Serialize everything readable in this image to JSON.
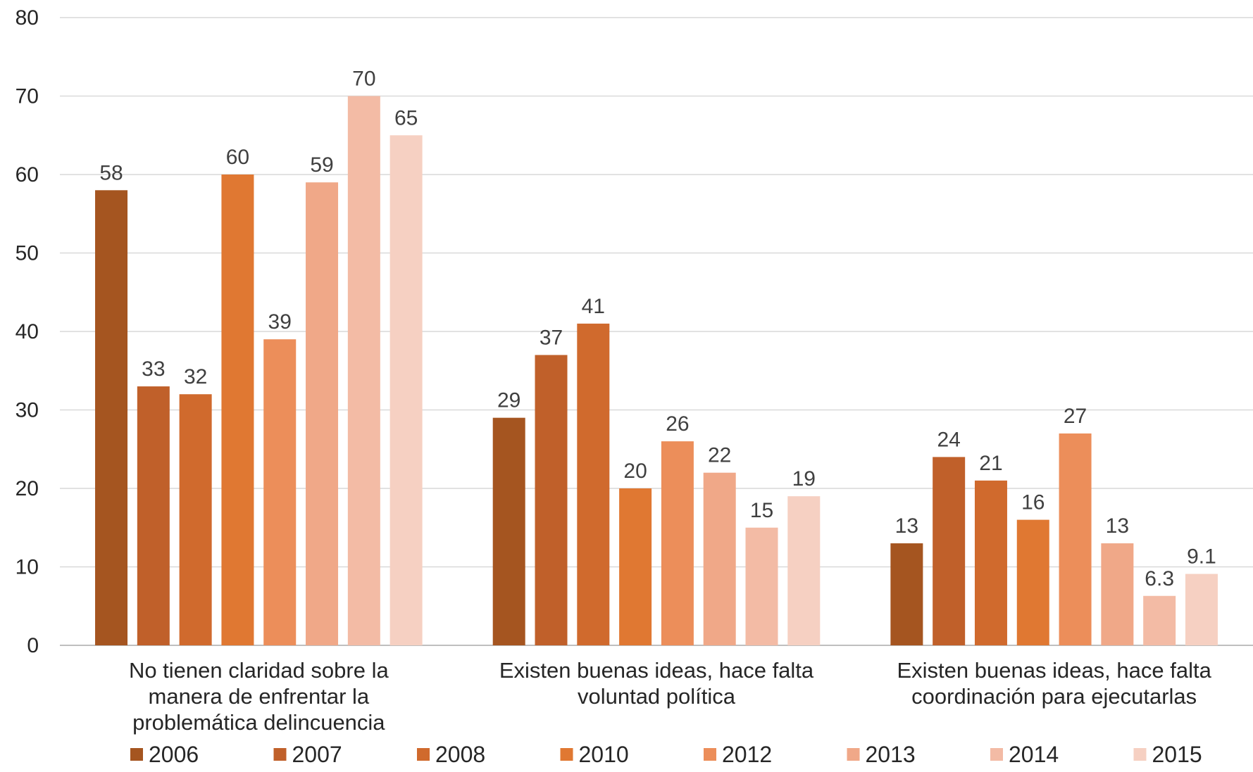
{
  "chart_data": {
    "type": "bar",
    "categories": [
      [
        "No tienen claridad sobre la",
        "manera de enfrentar la",
        "problemática delincuencia"
      ],
      [
        "Existen buenas ideas, hace falta",
        "voluntad política"
      ],
      [
        "Existen buenas ideas, hace falta",
        "coordinación para ejecutarlas"
      ]
    ],
    "series": [
      {
        "name": "2006",
        "values": [
          58,
          29,
          13
        ],
        "labels": [
          "58",
          "29",
          "13"
        ],
        "color": "#a55520"
      },
      {
        "name": "2007",
        "values": [
          33,
          37,
          24
        ],
        "labels": [
          "33",
          "37",
          "24"
        ],
        "color": "#c0602a"
      },
      {
        "name": "2008",
        "values": [
          32,
          41,
          21
        ],
        "labels": [
          "32",
          "41",
          "21"
        ],
        "color": "#d06a2d"
      },
      {
        "name": "2010",
        "values": [
          60,
          20,
          16
        ],
        "labels": [
          "60",
          "20",
          "16"
        ],
        "color": "#e07832"
      },
      {
        "name": "2012",
        "values": [
          39,
          26,
          27
        ],
        "labels": [
          "39",
          "26",
          "27"
        ],
        "color": "#ec8e5a"
      },
      {
        "name": "2013",
        "values": [
          59,
          22,
          13
        ],
        "labels": [
          "59",
          "22",
          "13"
        ],
        "color": "#f0a888"
      },
      {
        "name": "2014",
        "values": [
          70,
          15,
          6.3
        ],
        "labels": [
          "70",
          "15",
          "6.3"
        ],
        "color": "#f3bba5"
      },
      {
        "name": "2015",
        "values": [
          65,
          19,
          9.1
        ],
        "labels": [
          "65",
          "19",
          "9.1"
        ],
        "color": "#f6d0c2"
      }
    ],
    "yticks": [
      "0",
      "10",
      "20",
      "30",
      "40",
      "50",
      "60",
      "70",
      "80"
    ],
    "ylim": [
      0,
      80
    ],
    "grid": true,
    "legend": "bottom",
    "title": "",
    "xlabel": "",
    "ylabel": ""
  }
}
